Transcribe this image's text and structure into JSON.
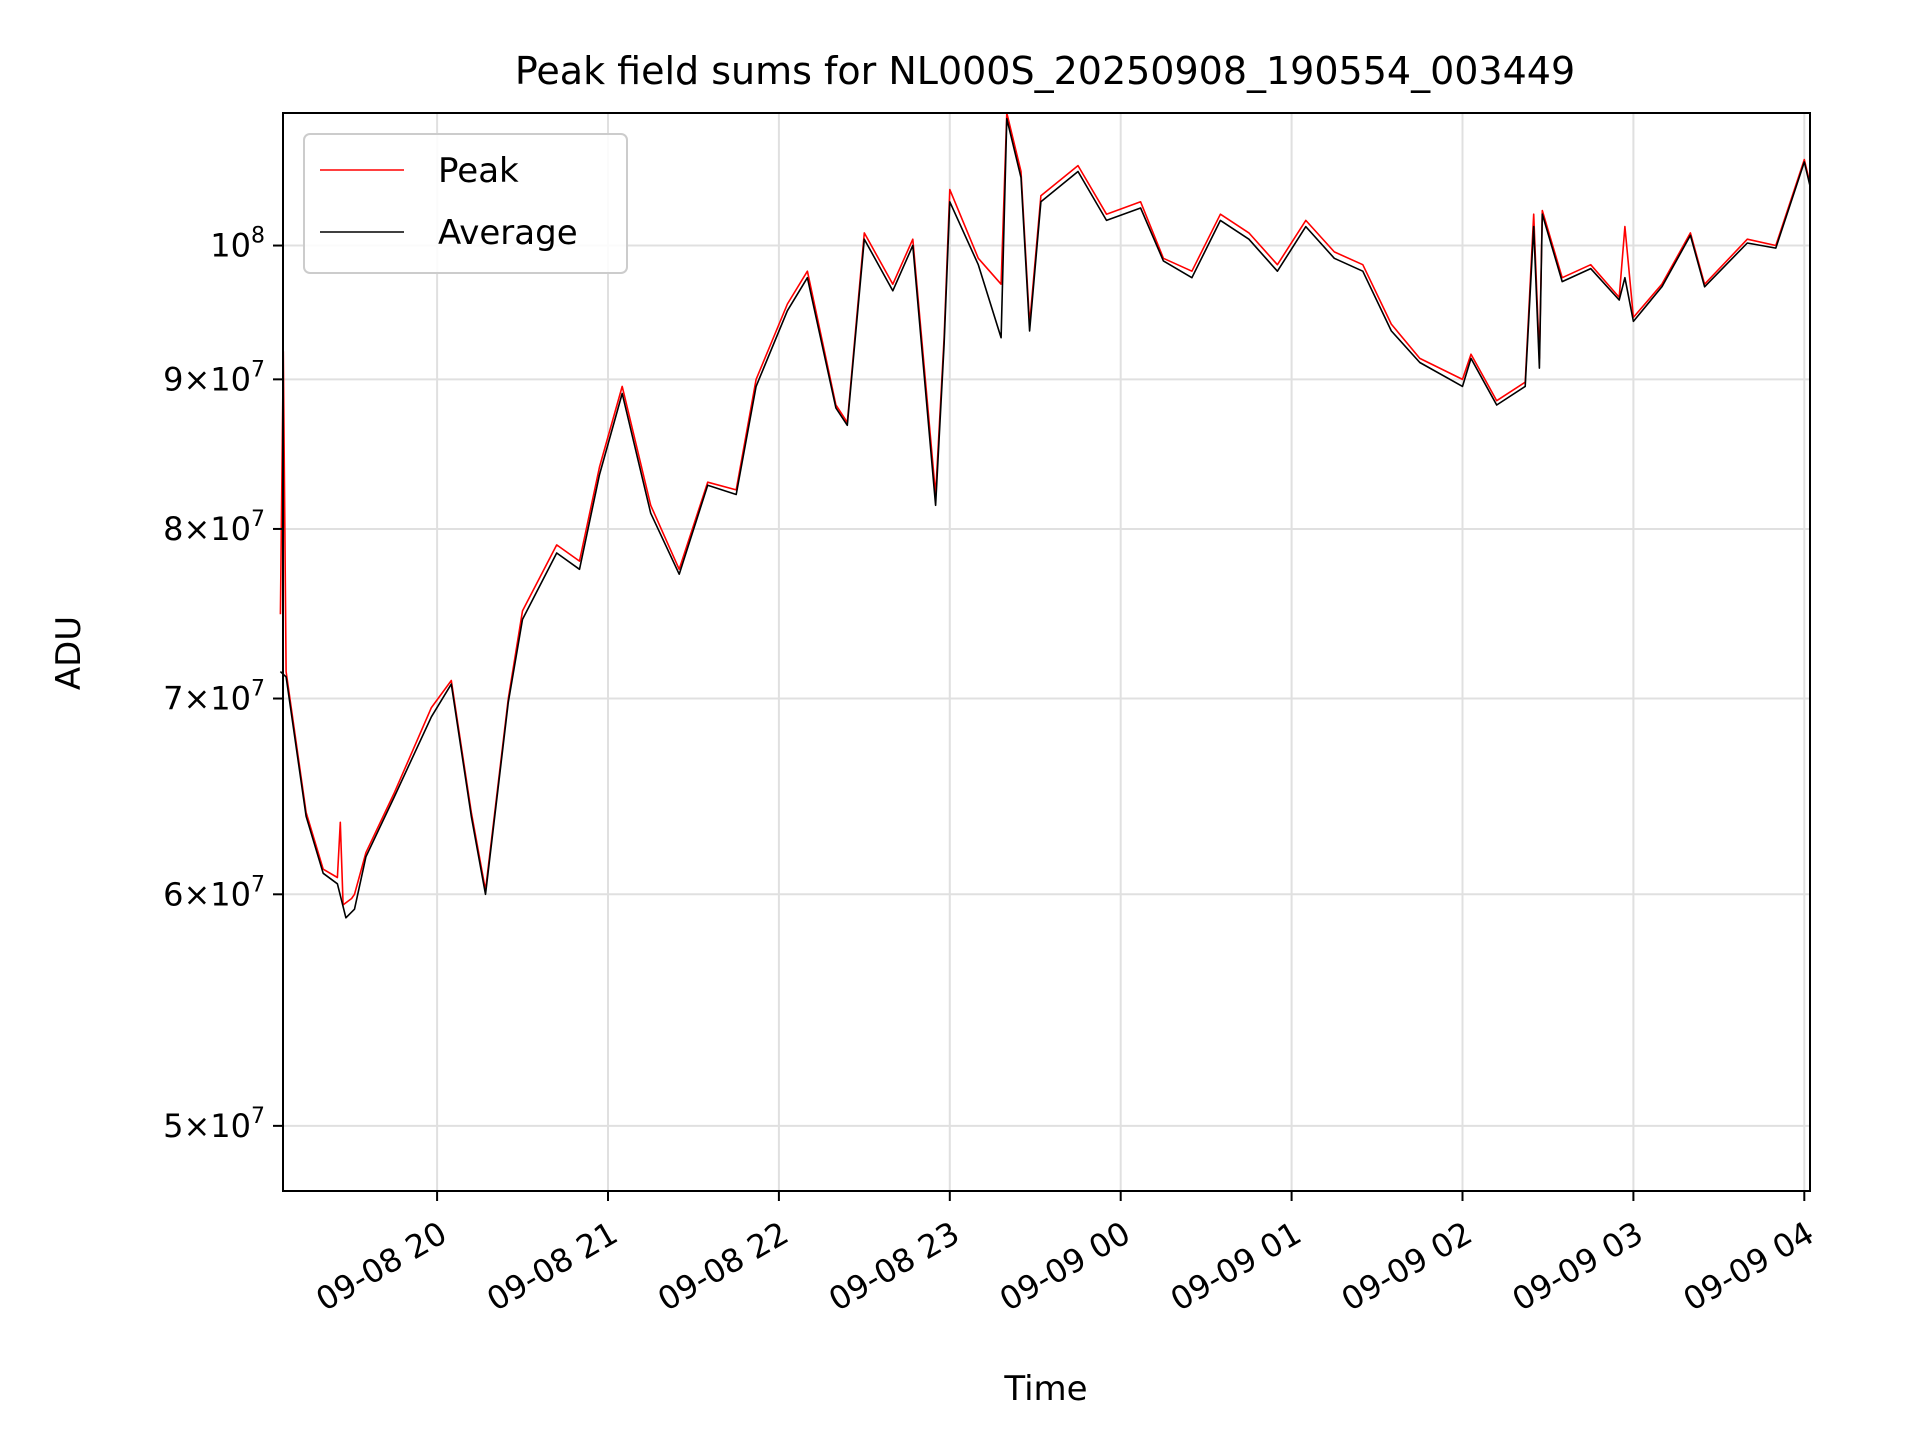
{
  "chart_data": {
    "type": "line",
    "title": "Peak field sums for NL000S_20250908_190554_003449",
    "xlabel": "Time",
    "ylabel": "ADU",
    "y_scale": "log",
    "ylim": [
      47500000,
      111000000
    ],
    "xlim": [
      "2025-09-08 19:05:54",
      "2025-09-09 04:02:00"
    ],
    "x_ticks": [
      "2025-09-08 20:00",
      "2025-09-08 21:00",
      "2025-09-08 22:00",
      "2025-09-08 23:00",
      "2025-09-09 00:00",
      "2025-09-09 01:00",
      "2025-09-09 02:00",
      "2025-09-09 03:00",
      "2025-09-09 04:00"
    ],
    "x_tick_labels": [
      "09-08 20",
      "09-08 21",
      "09-08 22",
      "09-08 23",
      "09-09 00",
      "09-09 01",
      "09-09 02",
      "09-09 03",
      "09-09 04"
    ],
    "y_ticks": [
      {
        "value": 50000000,
        "mantissa": "5",
        "exponent": "7"
      },
      {
        "value": 60000000,
        "mantissa": "6",
        "exponent": "7"
      },
      {
        "value": 70000000,
        "mantissa": "7",
        "exponent": "7"
      },
      {
        "value": 80000000,
        "mantissa": "8",
        "exponent": "7"
      },
      {
        "value": 90000000,
        "mantissa": "9",
        "exponent": "7"
      },
      {
        "value": 100000000,
        "mantissa": "",
        "exponent": "8"
      }
    ],
    "y_tick_base": "10",
    "y_tick_times": "×",
    "grid": true,
    "legend_position": "top-left",
    "series": [
      {
        "name": "Peak",
        "color": "#ff0000",
        "points": [
          [
            "2025-09-08 19:05",
            74800000
          ],
          [
            "2025-09-08 19:06",
            92000000
          ],
          [
            "2025-09-08 19:07",
            71500000
          ],
          [
            "2025-09-08 19:14",
            64000000
          ],
          [
            "2025-09-08 19:20",
            61200000
          ],
          [
            "2025-09-08 19:25",
            60800000
          ],
          [
            "2025-09-08 19:26",
            63500000
          ],
          [
            "2025-09-08 19:27",
            59500000
          ],
          [
            "2025-09-08 19:30",
            59800000
          ],
          [
            "2025-09-08 19:31",
            60000000
          ],
          [
            "2025-09-08 19:35",
            62000000
          ],
          [
            "2025-09-08 19:45",
            65000000
          ],
          [
            "2025-09-08 19:58",
            69500000
          ],
          [
            "2025-09-08 20:05",
            71000000
          ],
          [
            "2025-09-08 20:12",
            64000000
          ],
          [
            "2025-09-08 20:17",
            60200000
          ],
          [
            "2025-09-08 20:25",
            70000000
          ],
          [
            "2025-09-08 20:30",
            75000000
          ],
          [
            "2025-09-08 20:42",
            79000000
          ],
          [
            "2025-09-08 20:50",
            78000000
          ],
          [
            "2025-09-08 20:57",
            84000000
          ],
          [
            "2025-09-08 21:05",
            89500000
          ],
          [
            "2025-09-08 21:15",
            81500000
          ],
          [
            "2025-09-08 21:25",
            77500000
          ],
          [
            "2025-09-08 21:35",
            83000000
          ],
          [
            "2025-09-08 21:45",
            82500000
          ],
          [
            "2025-09-08 21:52",
            90000000
          ],
          [
            "2025-09-08 22:03",
            95500000
          ],
          [
            "2025-09-08 22:10",
            98000000
          ],
          [
            "2025-09-08 22:20",
            88200000
          ],
          [
            "2025-09-08 22:24",
            87000000
          ],
          [
            "2025-09-08 22:30",
            101000000
          ],
          [
            "2025-09-08 22:40",
            97000000
          ],
          [
            "2025-09-08 22:47",
            100500000
          ],
          [
            "2025-09-08 22:55",
            82200000
          ],
          [
            "2025-09-08 22:58",
            93000000
          ],
          [
            "2025-09-08 23:00",
            104500000
          ],
          [
            "2025-09-08 23:10",
            99000000
          ],
          [
            "2025-09-08 23:18",
            97000000
          ],
          [
            "2025-09-08 23:20",
            111000000
          ],
          [
            "2025-09-08 23:25",
            106000000
          ],
          [
            "2025-09-08 23:28",
            94000000
          ],
          [
            "2025-09-08 23:32",
            104000000
          ],
          [
            "2025-09-08 23:45",
            106500000
          ],
          [
            "2025-09-08 23:55",
            102500000
          ],
          [
            "2025-09-09 00:07",
            103500000
          ],
          [
            "2025-09-09 00:15",
            99000000
          ],
          [
            "2025-09-09 00:25",
            98000000
          ],
          [
            "2025-09-09 00:35",
            102500000
          ],
          [
            "2025-09-09 00:45",
            101000000
          ],
          [
            "2025-09-09 00:55",
            98500000
          ],
          [
            "2025-09-09 01:05",
            102000000
          ],
          [
            "2025-09-09 01:15",
            99500000
          ],
          [
            "2025-09-09 01:25",
            98500000
          ],
          [
            "2025-09-09 01:35",
            94000000
          ],
          [
            "2025-09-09 01:45",
            91500000
          ],
          [
            "2025-09-09 02:00",
            90000000
          ],
          [
            "2025-09-09 02:03",
            91800000
          ],
          [
            "2025-09-09 02:12",
            88500000
          ],
          [
            "2025-09-09 02:22",
            89800000
          ],
          [
            "2025-09-09 02:25",
            102500000
          ],
          [
            "2025-09-09 02:27",
            91500000
          ],
          [
            "2025-09-09 02:28",
            102800000
          ],
          [
            "2025-09-09 02:35",
            97500000
          ],
          [
            "2025-09-09 02:45",
            98500000
          ],
          [
            "2025-09-09 02:55",
            96000000
          ],
          [
            "2025-09-09 02:57",
            101500000
          ],
          [
            "2025-09-09 03:00",
            94500000
          ],
          [
            "2025-09-09 03:10",
            97000000
          ],
          [
            "2025-09-09 03:20",
            101000000
          ],
          [
            "2025-09-09 03:25",
            97000000
          ],
          [
            "2025-09-09 03:40",
            100500000
          ],
          [
            "2025-09-09 03:50",
            100000000
          ],
          [
            "2025-09-09 04:00",
            107000000
          ],
          [
            "2025-09-09 04:02",
            105000000
          ]
        ]
      },
      {
        "name": "Average",
        "color": "#000000",
        "points": [
          [
            "2025-09-08 19:05",
            71500000
          ],
          [
            "2025-09-08 19:07",
            71200000
          ],
          [
            "2025-09-08 19:14",
            63800000
          ],
          [
            "2025-09-08 19:20",
            61000000
          ],
          [
            "2025-09-08 19:25",
            60500000
          ],
          [
            "2025-09-08 19:28",
            58900000
          ],
          [
            "2025-09-08 19:31",
            59300000
          ],
          [
            "2025-09-08 19:35",
            61800000
          ],
          [
            "2025-09-08 19:45",
            64800000
          ],
          [
            "2025-09-08 19:58",
            69000000
          ],
          [
            "2025-09-08 20:05",
            70800000
          ],
          [
            "2025-09-08 20:12",
            63800000
          ],
          [
            "2025-09-08 20:17",
            60000000
          ],
          [
            "2025-09-08 20:25",
            69800000
          ],
          [
            "2025-09-08 20:30",
            74500000
          ],
          [
            "2025-09-08 20:42",
            78500000
          ],
          [
            "2025-09-08 20:50",
            77500000
          ],
          [
            "2025-09-08 20:57",
            83500000
          ],
          [
            "2025-09-08 21:05",
            89000000
          ],
          [
            "2025-09-08 21:15",
            81000000
          ],
          [
            "2025-09-08 21:25",
            77200000
          ],
          [
            "2025-09-08 21:35",
            82800000
          ],
          [
            "2025-09-08 21:45",
            82200000
          ],
          [
            "2025-09-08 21:52",
            89500000
          ],
          [
            "2025-09-08 22:03",
            95000000
          ],
          [
            "2025-09-08 22:10",
            97500000
          ],
          [
            "2025-09-08 22:20",
            88000000
          ],
          [
            "2025-09-08 22:24",
            86800000
          ],
          [
            "2025-09-08 22:30",
            100500000
          ],
          [
            "2025-09-08 22:40",
            96500000
          ],
          [
            "2025-09-08 22:47",
            100000000
          ],
          [
            "2025-09-08 22:55",
            81500000
          ],
          [
            "2025-09-08 22:58",
            92500000
          ],
          [
            "2025-09-08 23:00",
            103500000
          ],
          [
            "2025-09-08 23:10",
            98500000
          ],
          [
            "2025-09-08 23:18",
            93000000
          ],
          [
            "2025-09-08 23:20",
            110500000
          ],
          [
            "2025-09-08 23:25",
            105500000
          ],
          [
            "2025-09-08 23:28",
            93500000
          ],
          [
            "2025-09-08 23:32",
            103500000
          ],
          [
            "2025-09-08 23:45",
            106000000
          ],
          [
            "2025-09-08 23:55",
            102000000
          ],
          [
            "2025-09-09 00:07",
            103000000
          ],
          [
            "2025-09-09 00:15",
            98800000
          ],
          [
            "2025-09-09 00:25",
            97500000
          ],
          [
            "2025-09-09 00:35",
            102000000
          ],
          [
            "2025-09-09 00:45",
            100500000
          ],
          [
            "2025-09-09 00:55",
            98000000
          ],
          [
            "2025-09-09 01:05",
            101500000
          ],
          [
            "2025-09-09 01:15",
            99000000
          ],
          [
            "2025-09-09 01:25",
            98000000
          ],
          [
            "2025-09-09 01:35",
            93500000
          ],
          [
            "2025-09-09 01:45",
            91200000
          ],
          [
            "2025-09-09 02:00",
            89500000
          ],
          [
            "2025-09-09 02:03",
            91500000
          ],
          [
            "2025-09-09 02:12",
            88200000
          ],
          [
            "2025-09-09 02:22",
            89500000
          ],
          [
            "2025-09-09 02:25",
            101500000
          ],
          [
            "2025-09-09 02:27",
            90800000
          ],
          [
            "2025-09-09 02:28",
            102500000
          ],
          [
            "2025-09-09 02:35",
            97200000
          ],
          [
            "2025-09-09 02:45",
            98200000
          ],
          [
            "2025-09-09 02:55",
            95800000
          ],
          [
            "2025-09-09 02:57",
            97500000
          ],
          [
            "2025-09-09 03:00",
            94200000
          ],
          [
            "2025-09-09 03:10",
            96800000
          ],
          [
            "2025-09-09 03:20",
            100800000
          ],
          [
            "2025-09-09 03:25",
            96800000
          ],
          [
            "2025-09-09 03:40",
            100200000
          ],
          [
            "2025-09-09 03:50",
            99800000
          ],
          [
            "2025-09-09 04:00",
            106800000
          ],
          [
            "2025-09-09 04:02",
            104800000
          ]
        ]
      }
    ]
  }
}
